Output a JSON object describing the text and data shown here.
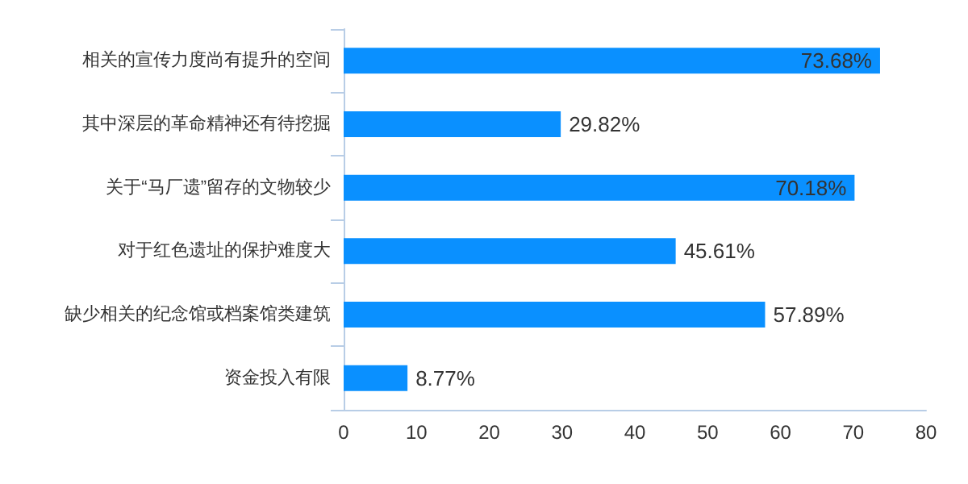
{
  "chart_data": {
    "type": "bar",
    "orientation": "horizontal",
    "categories": [
      "相关的宣传力度尚有提升的空间",
      "其中深层的革命精神还有待挖掘",
      "关于“马厂遗”留存的文物较少",
      "对于红色遗址的保护难度大",
      "缺少相关的纪念馆或档案馆类建筑",
      "资金投入有限"
    ],
    "values": [
      73.68,
      29.82,
      70.18,
      45.61,
      57.89,
      8.77
    ],
    "value_labels": [
      "73.68%",
      "29.82%",
      "70.18%",
      "45.61%",
      "57.89%",
      "8.77%"
    ],
    "color": "#0a90ff",
    "xlim": [
      0,
      80
    ],
    "xticks": [
      0,
      10,
      20,
      30,
      40,
      50,
      60,
      70,
      80
    ]
  }
}
